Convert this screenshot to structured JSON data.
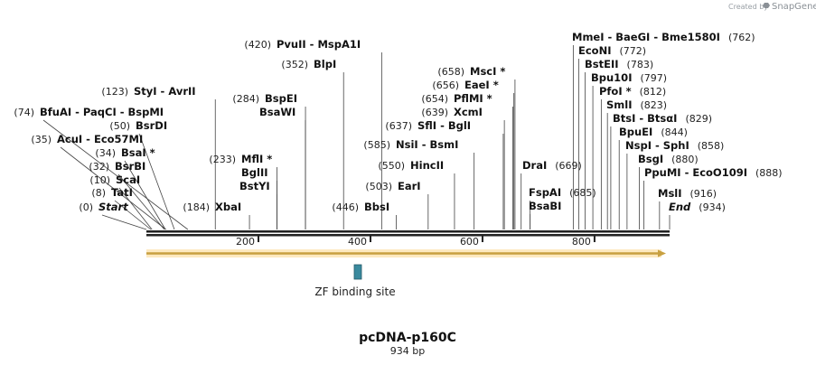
{
  "credit": {
    "prefix": "Created by",
    "brand": "SnapGene"
  },
  "plasmid": {
    "name": "pcDNA-p160C",
    "length_label": "934 bp",
    "length": 934
  },
  "axis": {
    "ticks": [
      200,
      400,
      600,
      800
    ]
  },
  "feature": {
    "label": "ZF binding site",
    "color": "#3a8a9e"
  },
  "colors": {
    "arrow": "#f0c060",
    "arrow_edge": "#b08020",
    "backbone": "#222222"
  },
  "labels": [
    {
      "pos": "(0)",
      "name": "Start",
      "site": 0,
      "italic": true
    },
    {
      "pos": "(8)",
      "name": "TatI",
      "site": 8
    },
    {
      "pos": "(10)",
      "name": "ScaI",
      "site": 10
    },
    {
      "pos": "(32)",
      "name": "BsrBI",
      "site": 32
    },
    {
      "pos": "(34)",
      "name": "BsaI",
      "star": true,
      "site": 34
    },
    {
      "pos": "(35)",
      "name": "AcuI  - Eco57MI",
      "site": 35
    },
    {
      "pos": "(50)",
      "name": "BsrDI",
      "site": 50
    },
    {
      "pos": "(74)",
      "name": "BfuAI  - PaqCI  - BspMI",
      "site": 74
    },
    {
      "pos": "(123)",
      "name": "StyI  - AvrII",
      "site": 123
    },
    {
      "pos": "(184)",
      "name": "XbaI",
      "site": 184
    },
    {
      "pos": "(233)",
      "name": "MflI",
      "star": true,
      "site": 233
    },
    {
      "pos": "",
      "name": "BglII",
      "site": 233
    },
    {
      "pos": "",
      "name": "BstYI",
      "site": 233
    },
    {
      "pos": "(284)",
      "name": "BspEI",
      "site": 284
    },
    {
      "pos": "",
      "name": "BsaWI",
      "site": 284
    },
    {
      "pos": "(352)",
      "name": "BlpI",
      "site": 352
    },
    {
      "pos": "(420)",
      "name": "PvuII  - MspA1I",
      "site": 420
    },
    {
      "pos": "(446)",
      "name": "BbsI",
      "site": 446
    },
    {
      "pos": "(503)",
      "name": "EarI",
      "site": 503
    },
    {
      "pos": "(550)",
      "name": "HincII",
      "site": 550
    },
    {
      "pos": "(585)",
      "name": "NsiI  - BsmI",
      "site": 585
    },
    {
      "pos": "(637)",
      "name": "SflI  - BglI",
      "site": 637
    },
    {
      "pos": "(639)",
      "name": "XcmI",
      "site": 639
    },
    {
      "pos": "(654)",
      "name": "PflMI",
      "star": true,
      "site": 654
    },
    {
      "pos": "(656)",
      "name": "EaeI",
      "star": true,
      "site": 656
    },
    {
      "pos": "(658)",
      "name": "MscI",
      "star": true,
      "site": 658
    },
    {
      "pos": "(669)",
      "name": "DraI",
      "site": 669
    },
    {
      "pos": "(685)",
      "name": "FspAI",
      "site": 685
    },
    {
      "pos": "",
      "name": "BsaBI",
      "site": 685
    },
    {
      "pos": "(762)",
      "name": "MmeI  - BaeGI  - Bme1580I",
      "site": 762
    },
    {
      "pos": "(772)",
      "name": "EcoNI",
      "site": 772
    },
    {
      "pos": "(783)",
      "name": "BstEII",
      "site": 783
    },
    {
      "pos": "(797)",
      "name": "Bpu10I",
      "site": 797
    },
    {
      "pos": "(812)",
      "name": "PfoI",
      "star": true,
      "site": 812
    },
    {
      "pos": "(823)",
      "name": "SmlI",
      "site": 823
    },
    {
      "pos": "(829)",
      "name": "BtsI  - BtsαI",
      "site": 829
    },
    {
      "pos": "(844)",
      "name": "BpuEI",
      "site": 844
    },
    {
      "pos": "(858)",
      "name": "NspI  - SphI",
      "site": 858
    },
    {
      "pos": "(880)",
      "name": "BsgI",
      "site": 880
    },
    {
      "pos": "(888)",
      "name": "PpuMI  - EcoO109I",
      "site": 888
    },
    {
      "pos": "(916)",
      "name": "MslI",
      "site": 916
    },
    {
      "pos": "(934)",
      "name": "End",
      "site": 934,
      "italic": true
    }
  ]
}
